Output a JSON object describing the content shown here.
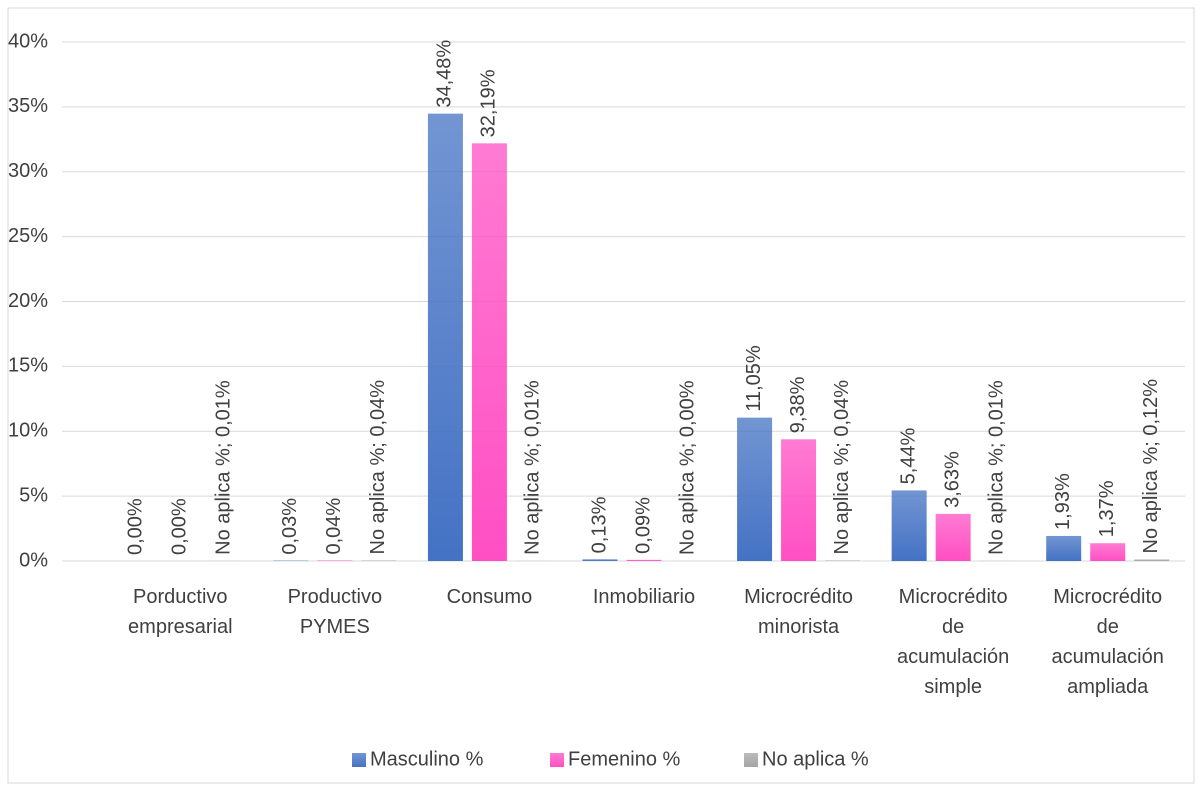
{
  "chart_data": {
    "type": "bar",
    "categories": [
      "Porductivo\nempresarial",
      "Productivo\nPYMES",
      "Consumo",
      "Inmobiliario",
      "Microcrédito\nminorista",
      "Microcrédito\nde\nacumulación\nsimple",
      "Microcrédito\nde\nacumulación\nampliada"
    ],
    "series": [
      {
        "name": "Masculino %",
        "color": "#4472c4",
        "values": [
          0,
          0.03,
          34.48,
          0.13,
          11.05,
          5.44,
          1.93
        ],
        "value_labels": [
          "0,00%",
          "0,03%",
          "34,48%",
          "0,13%",
          "11,05%",
          "5,44%",
          "1,93%"
        ]
      },
      {
        "name": "Femenino %",
        "color": "#ff4fc3",
        "values": [
          0,
          0.04,
          32.19,
          0.09,
          9.38,
          3.63,
          1.37
        ],
        "value_labels": [
          "0,00%",
          "0,04%",
          "32,19%",
          "0,09%",
          "9,38%",
          "3,63%",
          "1,37%"
        ]
      },
      {
        "name": "No aplica %",
        "color": "#a5a5a5",
        "values": [
          0.01,
          0.04,
          0.01,
          0,
          0.04,
          0.01,
          0.12
        ],
        "value_labels": [
          "No aplica %; 0,01%",
          "No aplica %; 0,04%",
          "No aplica %; 0,01%",
          "No aplica %; 0,00%",
          "No aplica %; 0,04%",
          "No aplica %; 0,01%",
          "No aplica %; 0,12%"
        ]
      }
    ],
    "ylim": [
      0,
      40
    ],
    "yticks": [
      {
        "value": 0,
        "label": "0%"
      },
      {
        "value": 5,
        "label": "5%"
      },
      {
        "value": 10,
        "label": "10%"
      },
      {
        "value": 15,
        "label": "15%"
      },
      {
        "value": 20,
        "label": "20%"
      },
      {
        "value": 25,
        "label": "25%"
      },
      {
        "value": 30,
        "label": "30%"
      },
      {
        "value": 35,
        "label": "35%"
      },
      {
        "value": 40,
        "label": "40%"
      }
    ],
    "grid": true,
    "legend": "bottom"
  }
}
